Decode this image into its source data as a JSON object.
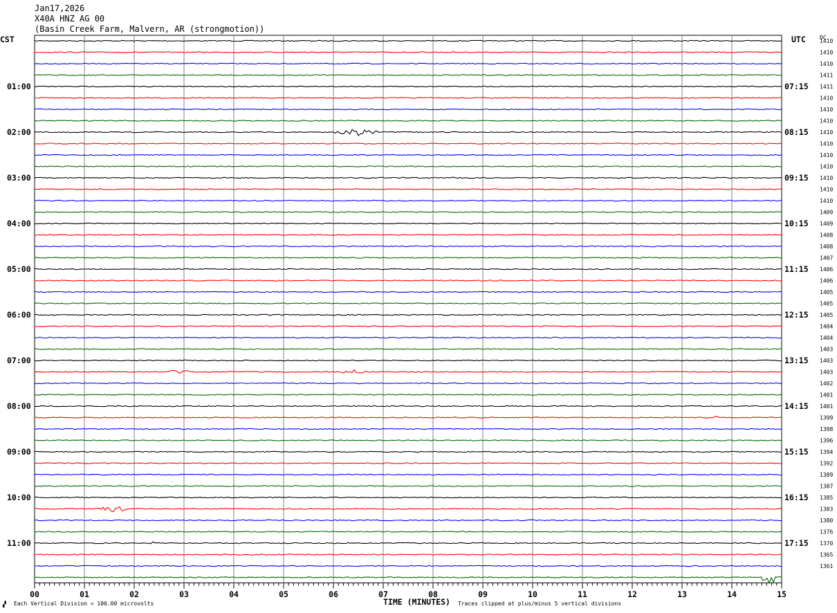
{
  "header": {
    "date": "Jan17,2026",
    "station": "X40A HNZ AG 00",
    "location": "(Basin Creek Farm, Malvern, AR (strongmotion))"
  },
  "axis_labels": {
    "left": "CST",
    "right": "UTC",
    "dc": "DC"
  },
  "footer": {
    "scale": "Each Vertical Division =  100.00 microvolts",
    "xlabel": "TIME (MINUTES)",
    "clip": "Traces clipped at plus/minus 5 vertical divisions"
  },
  "colors": {
    "trace_cycle": [
      "#000000",
      "#ff0000",
      "#0000ff",
      "#006400"
    ],
    "grid": "#808080"
  },
  "chart_data": {
    "type": "helicorder",
    "x_ticks": [
      "00",
      "01",
      "02",
      "03",
      "04",
      "05",
      "06",
      "07",
      "08",
      "09",
      "10",
      "11",
      "12",
      "13",
      "14",
      "15"
    ],
    "xlim": [
      0,
      15
    ],
    "cst_labels": [
      "01:00",
      "02:00",
      "03:00",
      "04:00",
      "05:00",
      "06:00",
      "07:00",
      "08:00",
      "09:00",
      "10:00",
      "11:00"
    ],
    "utc_labels": [
      "07:15",
      "08:15",
      "09:15",
      "10:15",
      "11:15",
      "12:15",
      "13:15",
      "14:15",
      "15:15",
      "16:15",
      "17:15"
    ],
    "dc_values": [
      "1410",
      "1410",
      "1410",
      "1411",
      "1411",
      "1410",
      "1410",
      "1410",
      "1410",
      "1410",
      "1410",
      "1410",
      "1410",
      "1410",
      "1410",
      "1409",
      "1409",
      "1408",
      "1408",
      "1407",
      "1406",
      "1406",
      "1405",
      "1405",
      "1405",
      "1404",
      "1404",
      "1403",
      "1403",
      "1403",
      "1402",
      "1401",
      "1401",
      "1399",
      "1398",
      "1396",
      "1394",
      "1392",
      "1389",
      "1387",
      "1385",
      "1383",
      "1380",
      "1376",
      "1370",
      "1365",
      "1361"
    ],
    "events": [
      {
        "row": 8,
        "start_min": 5.9,
        "end_min": 7.0,
        "amplitude": 5
      },
      {
        "row": 29,
        "start_min": 2.6,
        "end_min": 3.2,
        "amplitude": 3
      },
      {
        "row": 29,
        "start_min": 6.0,
        "end_min": 6.8,
        "amplitude": 3
      },
      {
        "row": 33,
        "start_min": 13.4,
        "end_min": 13.9,
        "amplitude": 2
      },
      {
        "row": 41,
        "start_min": 1.2,
        "end_min": 1.9,
        "amplitude": 5
      },
      {
        "row": 44,
        "start_min": 2.0,
        "end_min": 2.6,
        "amplitude": 2
      },
      {
        "row": 47,
        "start_min": 14.5,
        "end_min": 15.0,
        "amplitude": 9
      }
    ]
  }
}
